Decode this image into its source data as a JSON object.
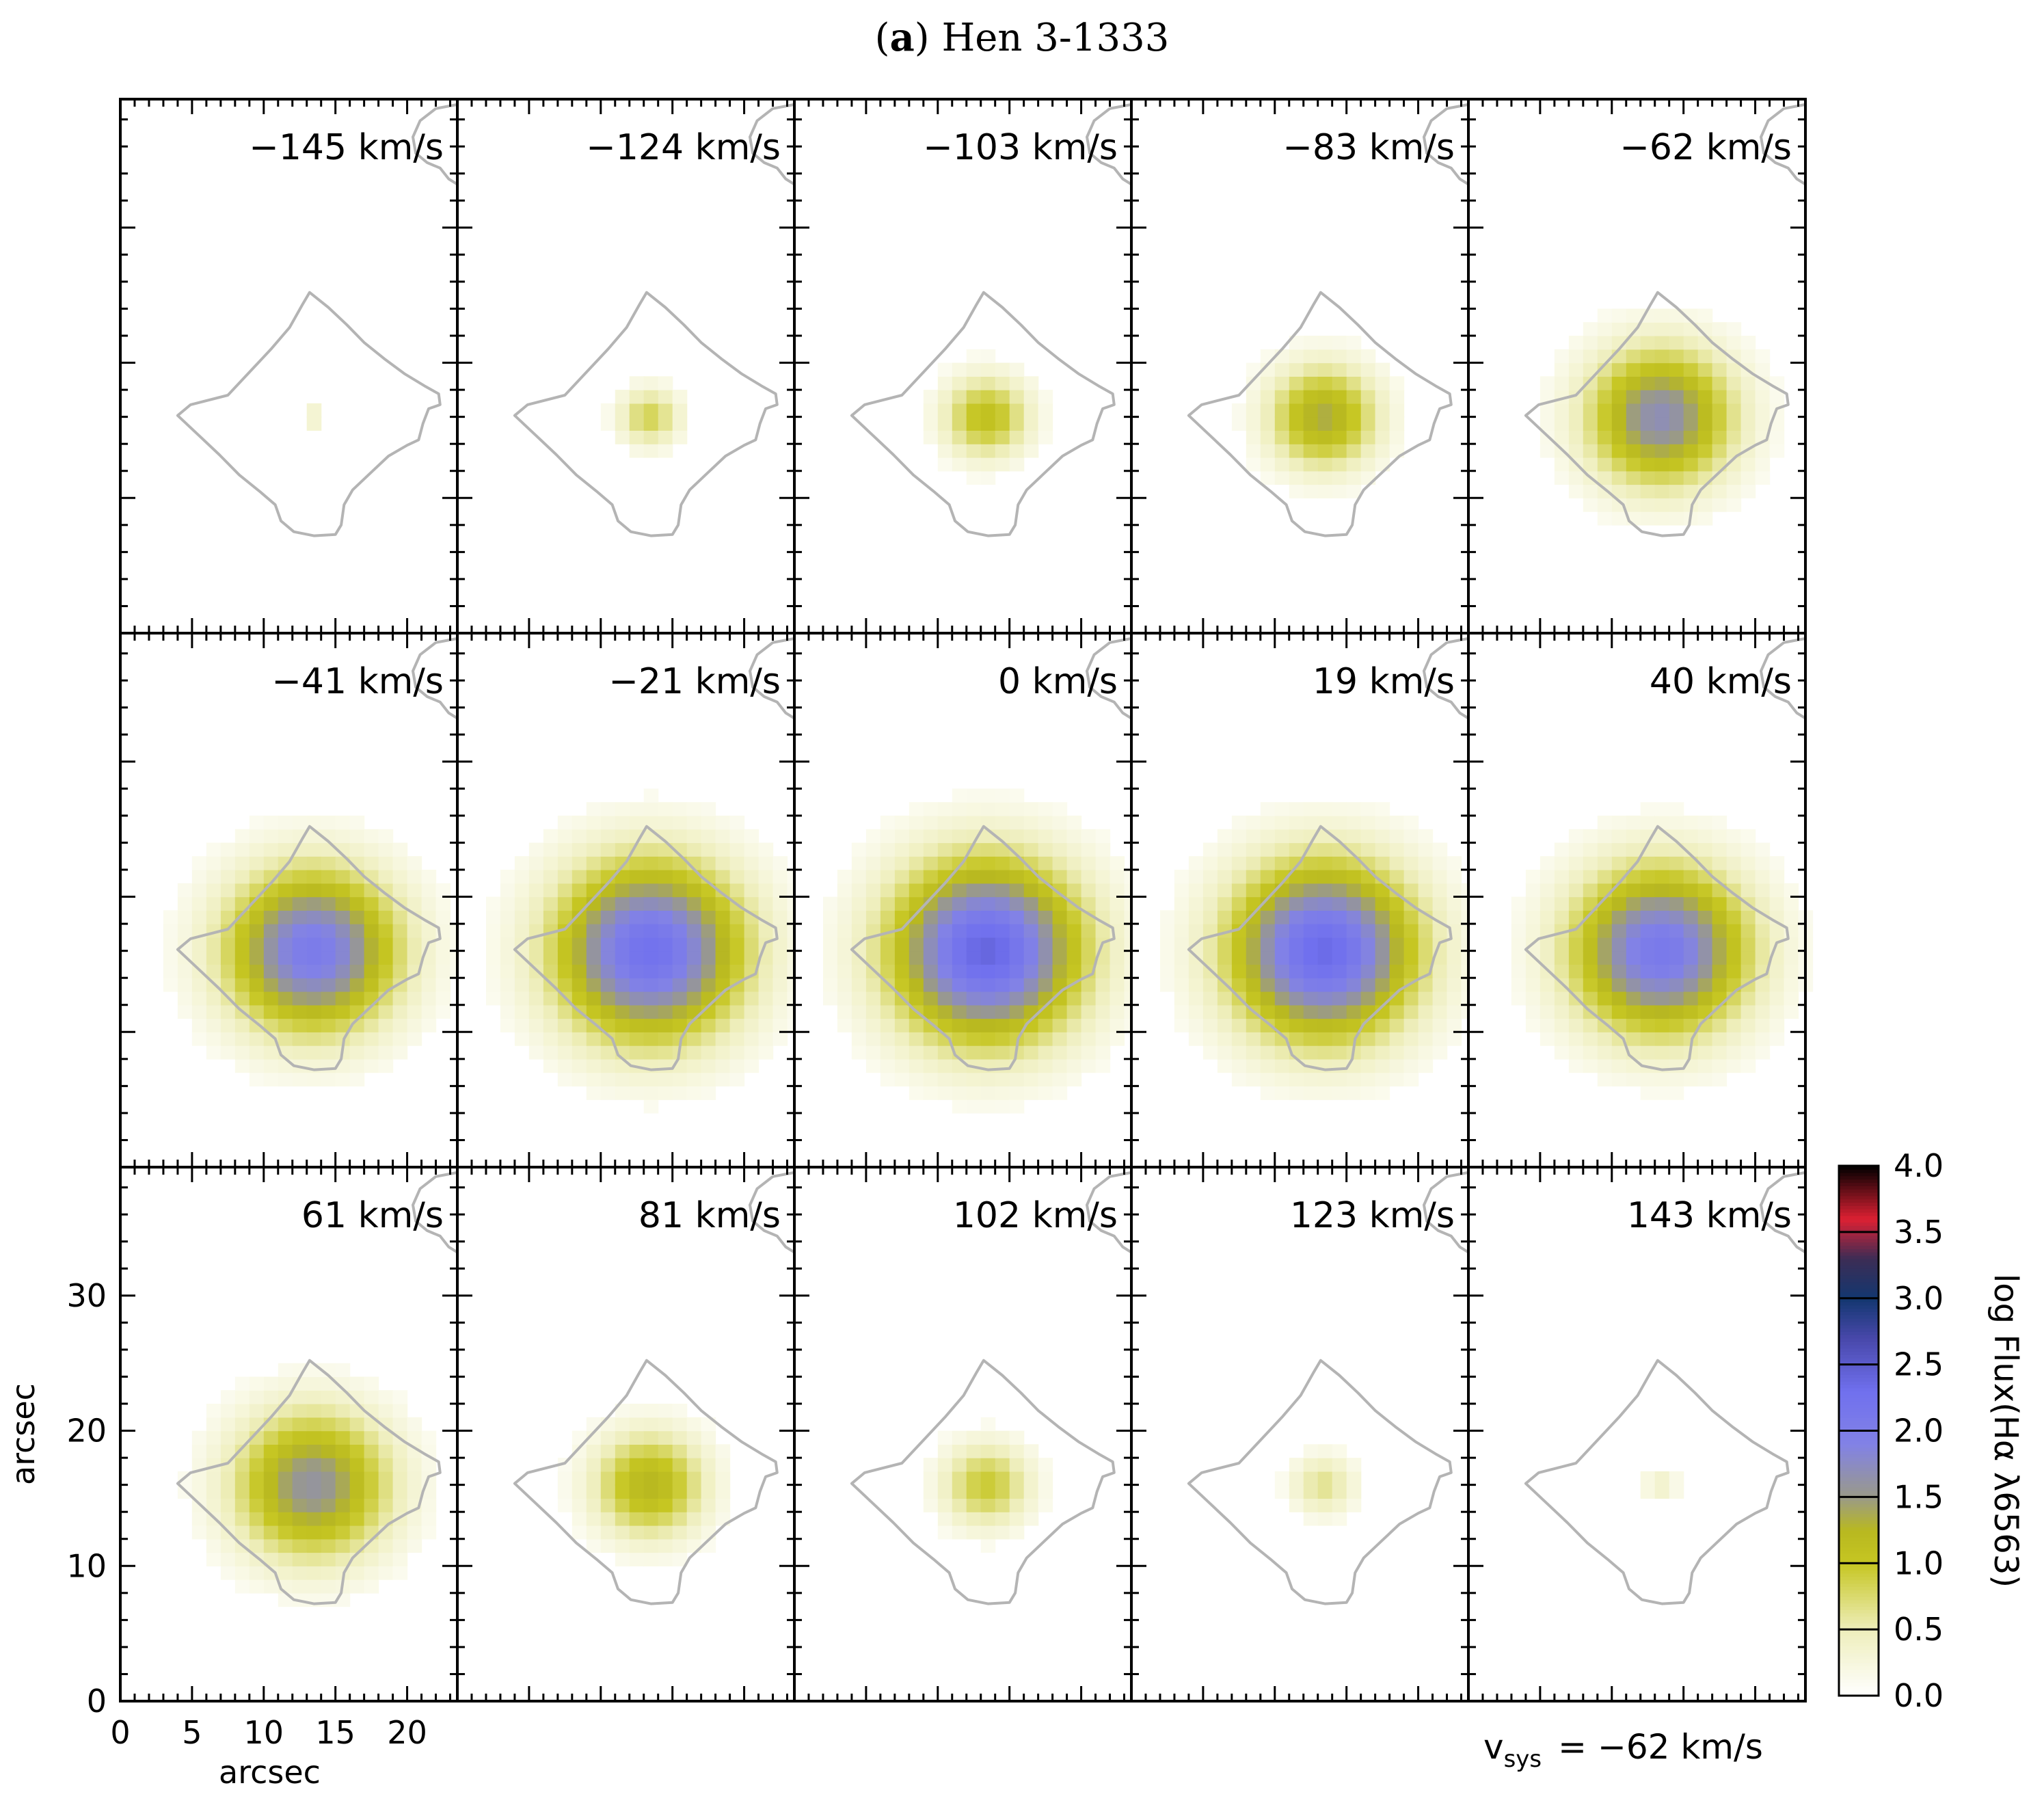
{
  "figure": {
    "panel_letter": "a",
    "object_name": "Hen 3-1333",
    "vsys_label": "v",
    "vsys_sub": "sys",
    "vsys_value": "= −62 km/s"
  },
  "chart_data": {
    "type": "heatmap",
    "title": "(a) Hen 3-1333",
    "xlabel": "arcsec",
    "ylabel": "arcsec",
    "xlim": [
      0,
      23.5
    ],
    "ylim": [
      0,
      39.5
    ],
    "x_ticks": [
      0,
      5,
      10,
      15,
      20
    ],
    "y_ticks": [
      0,
      10,
      20,
      30
    ],
    "grid": false,
    "center_arcsec": [
      13.4,
      16.0
    ],
    "colorbar": {
      "label": "log Flux(Hα λ6563)",
      "min": 0.0,
      "max": 4.0,
      "ticks": [
        "0.0",
        "0.5",
        "1.0",
        "1.5",
        "2.0",
        "2.5",
        "3.0",
        "3.5",
        "4.0"
      ],
      "stops": [
        {
          "v": 0.0,
          "c": "#ffffff"
        },
        {
          "v": 0.5,
          "c": "#eeeebb"
        },
        {
          "v": 1.0,
          "c": "#c6c622"
        },
        {
          "v": 1.25,
          "c": "#b8b820"
        },
        {
          "v": 1.5,
          "c": "#9a9a88"
        },
        {
          "v": 1.9,
          "c": "#8282e6"
        },
        {
          "v": 2.3,
          "c": "#7070ee"
        },
        {
          "v": 2.7,
          "c": "#4848aa"
        },
        {
          "v": 3.0,
          "c": "#133770"
        },
        {
          "v": 3.3,
          "c": "#3c2d55"
        },
        {
          "v": 3.6,
          "c": "#dd2033"
        },
        {
          "v": 4.0,
          "c": "#000000"
        }
      ]
    },
    "channels": [
      {
        "velocity": "−145 km/s",
        "peak": 0.45,
        "radius": 1.0
      },
      {
        "velocity": "−124 km/s",
        "peak": 0.85,
        "radius": 2.5
      },
      {
        "velocity": "−103 km/s",
        "peak": 1.1,
        "radius": 3.5
      },
      {
        "velocity": "−83 km/s",
        "peak": 1.35,
        "radius": 4.4
      },
      {
        "velocity": "−62 km/s",
        "peak": 1.7,
        "radius": 5.9
      },
      {
        "velocity": "−41 km/s",
        "peak": 2.05,
        "radius": 6.9
      },
      {
        "velocity": "−21 km/s",
        "peak": 2.25,
        "radius": 7.6
      },
      {
        "velocity": "0 km/s",
        "peak": 2.4,
        "radius": 7.7
      },
      {
        "velocity": "19 km/s",
        "peak": 2.35,
        "radius": 7.5
      },
      {
        "velocity": "40 km/s",
        "peak": 2.1,
        "radius": 7.1
      },
      {
        "velocity": "61 km/s",
        "peak": 1.6,
        "radius": 6.3
      },
      {
        "velocity": "81 km/s",
        "peak": 1.25,
        "radius": 4.5
      },
      {
        "velocity": "102 km/s",
        "peak": 0.95,
        "radius": 3.6
      },
      {
        "velocity": "123 km/s",
        "peak": 0.65,
        "radius": 2.6
      },
      {
        "velocity": "143 km/s",
        "peak": 0.4,
        "radius": 1.5
      }
    ],
    "contour_arcsec": [
      [
        13.2,
        25.2
      ],
      [
        14.5,
        24.1
      ],
      [
        15.8,
        22.8
      ],
      [
        17.0,
        21.5
      ],
      [
        18.4,
        20.3
      ],
      [
        19.8,
        19.2
      ],
      [
        21.2,
        18.3
      ],
      [
        22.2,
        17.7
      ],
      [
        22.3,
        16.9
      ],
      [
        21.5,
        16.6
      ],
      [
        21.1,
        15.5
      ],
      [
        20.8,
        14.3
      ],
      [
        20.0,
        13.9
      ],
      [
        18.7,
        13.1
      ],
      [
        17.4,
        11.8
      ],
      [
        16.2,
        10.6
      ],
      [
        15.6,
        9.5
      ],
      [
        15.4,
        8.0
      ],
      [
        15.0,
        7.3
      ],
      [
        13.5,
        7.2
      ],
      [
        12.1,
        7.5
      ],
      [
        11.2,
        8.3
      ],
      [
        10.8,
        9.5
      ],
      [
        9.7,
        10.5
      ],
      [
        8.3,
        11.7
      ],
      [
        6.9,
        13.2
      ],
      [
        5.4,
        14.7
      ],
      [
        4.0,
        16.1
      ],
      [
        4.9,
        16.9
      ],
      [
        7.5,
        17.6
      ],
      [
        9.0,
        19.3
      ],
      [
        10.5,
        21.0
      ],
      [
        11.8,
        22.6
      ],
      [
        12.7,
        24.3
      ]
    ],
    "arc_arcsec": [
      [
        23.5,
        39.1
      ],
      [
        22.0,
        38.8
      ],
      [
        20.9,
        37.9
      ],
      [
        20.4,
        36.7
      ],
      [
        20.6,
        35.5
      ],
      [
        21.4,
        34.8
      ],
      [
        22.3,
        34.4
      ],
      [
        22.9,
        33.6
      ],
      [
        23.5,
        33.2
      ]
    ]
  }
}
